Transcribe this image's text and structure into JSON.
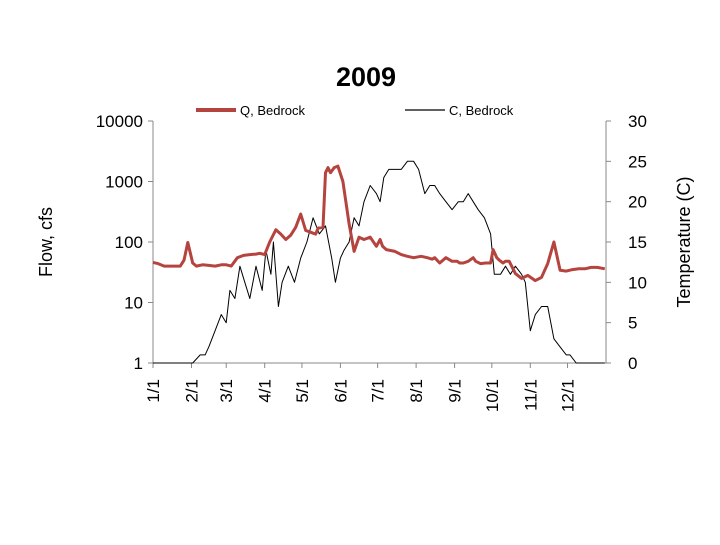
{
  "chart_data": {
    "type": "line",
    "title": "2009",
    "xlabel": "",
    "ylabel": "Flow, cfs",
    "y2label": "Temperature (C)",
    "y_scale": "log",
    "ylim": [
      1,
      10000
    ],
    "y2lim": [
      0,
      30
    ],
    "grid": false,
    "legend_position": "top",
    "x_ticks": [
      "1/1",
      "2/1",
      "3/1",
      "4/1",
      "5/1",
      "6/1",
      "7/1",
      "8/1",
      "9/1",
      "10/1",
      "11/1",
      "12/1"
    ],
    "y_ticks": [
      "1",
      "10",
      "100",
      "1000",
      "10000"
    ],
    "y2_ticks": [
      "0",
      "5",
      "10",
      "15",
      "20",
      "25",
      "30"
    ],
    "series": [
      {
        "name": "Q, Bedrock",
        "axis": "left",
        "color": "#b5433e",
        "x": [
          "1/1",
          "1/5",
          "1/10",
          "1/15",
          "1/20",
          "1/23",
          "1/26",
          "1/29",
          "2/2",
          "2/5",
          "2/10",
          "2/15",
          "2/20",
          "2/25",
          "3/1",
          "3/5",
          "3/10",
          "3/15",
          "3/20",
          "3/25",
          "3/28",
          "4/1",
          "4/5",
          "4/10",
          "4/14",
          "4/18",
          "4/22",
          "4/26",
          "4/30",
          "5/4",
          "5/8",
          "5/10",
          "5/12",
          "5/13",
          "5/14",
          "5/18",
          "5/20",
          "5/22",
          "5/24",
          "5/27",
          "5/30",
          "6/3",
          "6/8",
          "6/12",
          "6/16",
          "6/20",
          "6/25",
          "6/30",
          "7/3",
          "7/5",
          "7/8",
          "7/15",
          "7/20",
          "7/25",
          "7/30",
          "8/5",
          "8/10",
          "8/14",
          "8/16",
          "8/20",
          "8/25",
          "8/30",
          "9/3",
          "9/5",
          "9/8",
          "9/12",
          "9/16",
          "9/18",
          "9/22",
          "9/26",
          "9/30",
          "10/2",
          "10/5",
          "10/7",
          "10/10",
          "10/12",
          "10/15",
          "10/20",
          "10/25",
          "10/30",
          "11/5",
          "11/10",
          "11/15",
          "11/20",
          "11/25",
          "11/30",
          "12/5",
          "12/10",
          "12/15",
          "12/20",
          "12/25",
          "12/31"
        ],
        "values": [
          46,
          44,
          40,
          40,
          40,
          40,
          50,
          98,
          45,
          40,
          42,
          41,
          40,
          42,
          42,
          40,
          55,
          60,
          62,
          63,
          65,
          62,
          100,
          160,
          135,
          110,
          130,
          175,
          290,
          155,
          145,
          140,
          135,
          150,
          170,
          175,
          1400,
          1700,
          1400,
          1700,
          1800,
          1000,
          200,
          70,
          120,
          110,
          120,
          85,
          110,
          85,
          75,
          70,
          62,
          58,
          55,
          58,
          55,
          52,
          55,
          45,
          55,
          48,
          48,
          45,
          45,
          48,
          55,
          48,
          44,
          45,
          45,
          75,
          55,
          50,
          45,
          48,
          48,
          30,
          25,
          28,
          23,
          26,
          44,
          100,
          34,
          33,
          35,
          36,
          36,
          38,
          38,
          36
        ]
      },
      {
        "name": "C, Bedrock",
        "axis": "right",
        "color": "#000000",
        "x": [
          "1/1",
          "1/15",
          "1/20",
          "1/25",
          "1/28",
          "2/2",
          "2/8",
          "2/12",
          "2/15",
          "2/20",
          "2/25",
          "3/1",
          "3/4",
          "3/8",
          "3/12",
          "3/16",
          "3/20",
          "3/25",
          "3/30",
          "4/2",
          "4/6",
          "4/8",
          "4/12",
          "4/15",
          "4/20",
          "4/25",
          "4/30",
          "5/5",
          "5/10",
          "5/15",
          "5/20",
          "5/25",
          "5/28",
          "6/1",
          "6/4",
          "6/8",
          "6/12",
          "6/16",
          "6/20",
          "6/25",
          "6/30",
          "7/3",
          "7/6",
          "7/10",
          "7/15",
          "7/20",
          "7/25",
          "7/30",
          "8/3",
          "8/8",
          "8/12",
          "8/16",
          "8/20",
          "8/25",
          "8/30",
          "9/4",
          "9/8",
          "9/12",
          "9/16",
          "9/20",
          "9/25",
          "9/30",
          "10/3",
          "10/8",
          "10/12",
          "10/16",
          "10/20",
          "10/25",
          "10/28",
          "11/1",
          "11/5",
          "11/10",
          "11/15",
          "11/20",
          "11/25",
          "11/30",
          "12/3",
          "12/8",
          "12/12",
          "12/15",
          "12/20",
          "12/31"
        ],
        "values": [
          0,
          0,
          0,
          0,
          0,
          0,
          1,
          1,
          2,
          4,
          6,
          5,
          9,
          8,
          12,
          10,
          8,
          12,
          9,
          14,
          11,
          15,
          7,
          10,
          12,
          10,
          13,
          15,
          18,
          16,
          17,
          13,
          10,
          13,
          14,
          15,
          18,
          17,
          20,
          22,
          21,
          20,
          23,
          24,
          24,
          24,
          25,
          25,
          24,
          21,
          22,
          22,
          21,
          20,
          19,
          20,
          20,
          21,
          20,
          19,
          18,
          16,
          11,
          11,
          12,
          11,
          12,
          11,
          10,
          4,
          6,
          7,
          7,
          3,
          2,
          1,
          1,
          0,
          0,
          0,
          0,
          0
        ]
      }
    ]
  }
}
